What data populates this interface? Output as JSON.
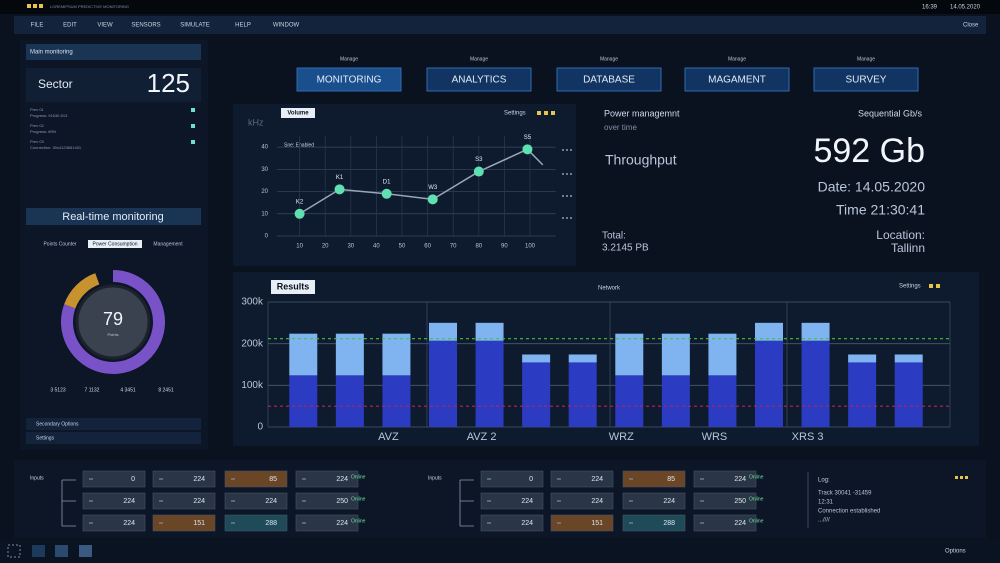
{
  "top_bar": {
    "app_title": "LOREMIPSUM PREDICTIVE MONITORING",
    "time": "16:39",
    "date": "14.05.2020"
  },
  "menu": {
    "items": [
      "FILE",
      "EDIT",
      "VIEW",
      "SENSORS",
      "SIMULATE",
      "HELP",
      "WINDOW"
    ],
    "close": "Close"
  },
  "left_panel": {
    "header": "Main monitoring",
    "sector": {
      "label": "Sector",
      "value": 125
    },
    "previews": [
      {
        "name": "Prev 01",
        "detail": "Progress: 91630-513"
      },
      {
        "name": "Prev 02",
        "detail": "Progress: 89%"
      },
      {
        "name": "Prev 03",
        "detail": "Connection: 30x4123651401"
      }
    ],
    "realtime_title": "Real-time monitoring",
    "tabs": [
      "Points Counter",
      "Power Consumption",
      "Management"
    ],
    "active_tab": 1,
    "gauge": {
      "value": 79,
      "unit": "Points"
    },
    "stats": [
      "3 5123",
      "7 1132",
      "4 3451",
      "8 2451"
    ],
    "options": [
      "Secondary Options",
      "Settings"
    ]
  },
  "manage": {
    "label": "Manage",
    "buttons": [
      "MONITORING",
      "ANALYTICS",
      "DATABASE",
      "MAGAMENT",
      "SURVEY"
    ]
  },
  "chart_data": [
    {
      "type": "line",
      "title": "Volume",
      "settings": "Settings",
      "y_label": "kHz",
      "note": "Sne: Enabled",
      "x": [
        10,
        25.6,
        44,
        62,
        80,
        99,
        105
      ],
      "values": [
        10,
        21,
        19,
        16.5,
        29,
        39,
        32
      ],
      "point_labels": [
        "K2",
        "K1",
        "D1",
        "W3",
        "S3",
        "S5",
        null
      ],
      "color": "#9aa6b8",
      "marker_color": "#5fe0b0",
      "xlim": [
        0,
        110
      ],
      "ylim": [
        0,
        45
      ],
      "xticks": [
        10,
        20,
        30,
        40,
        50,
        60,
        70,
        80,
        90,
        100
      ],
      "yticks": [
        0,
        10,
        20,
        30,
        40
      ],
      "grid": true
    },
    {
      "type": "bar",
      "stacked": true,
      "title": "Results",
      "subtitle": "Network",
      "settings": "Settings",
      "categories": [
        null,
        null,
        "AVZ",
        null,
        "AVZ 2",
        null,
        null,
        "WRZ",
        null,
        "WRS",
        null,
        "XRS 3",
        null,
        null
      ],
      "series": [
        {
          "color": "#2c3cc2",
          "values": [
            124000,
            124000,
            124000,
            207000,
            207000,
            155000,
            155000,
            124000,
            124000,
            124000,
            207000,
            207000,
            155000,
            155000
          ]
        },
        {
          "color": "#80b4f0",
          "values": [
            100000,
            100000,
            100000,
            43000,
            43000,
            19000,
            19000,
            100000,
            100000,
            100000,
            43000,
            43000,
            19000,
            19000
          ]
        }
      ],
      "reference_lines": [
        {
          "value": 212000,
          "color": "#3fc43f"
        },
        {
          "value": 50000,
          "color": "#c0205a"
        }
      ],
      "ylim": [
        0,
        300000
      ],
      "yticks": [
        0,
        {
          "value": 100000,
          "label": "100k"
        },
        {
          "value": 200000,
          "label": "200k"
        },
        {
          "value": 300000,
          "label": "300k"
        }
      ],
      "grid": true
    }
  ],
  "power": {
    "title": "Power managemnt",
    "subtitle": "over time",
    "metric": "Throughput",
    "total_label": "Total:",
    "total_value": "3.2145 PB",
    "sequential_label": "Sequential Gb/s",
    "sequential_value": "592 Gb",
    "date": "Date: 14.05.2020",
    "time": "Time 21:30:41",
    "location_label": "Location:",
    "location": "Tallinn"
  },
  "inputs": {
    "groups": [
      {
        "label": "Inputs",
        "rows": [
          [
            0,
            224,
            {
              "value": 85,
              "color": "#6a4526"
            },
            224
          ],
          [
            224,
            224,
            224,
            250
          ],
          [
            224,
            {
              "value": 151,
              "color": "#6a4526"
            },
            {
              "value": 288,
              "color": "#1e4b57"
            },
            224
          ]
        ],
        "status": [
          "Online",
          "Online",
          "Online"
        ]
      },
      {
        "label": "Inputs",
        "rows": [
          [
            0,
            224,
            {
              "value": 85,
              "color": "#6a4526"
            },
            224
          ],
          [
            224,
            224,
            224,
            250
          ],
          [
            224,
            {
              "value": 151,
              "color": "#6a4526"
            },
            {
              "value": 288,
              "color": "#1e4b57"
            },
            224
          ]
        ],
        "status": [
          "Online",
          "Online",
          "Online"
        ]
      }
    ]
  },
  "log": {
    "title": "Log:",
    "lines": [
      "Track 30041 -31459",
      "12:31",
      "Connection established",
      "...////"
    ]
  },
  "status_bar": {
    "options": "Options"
  }
}
